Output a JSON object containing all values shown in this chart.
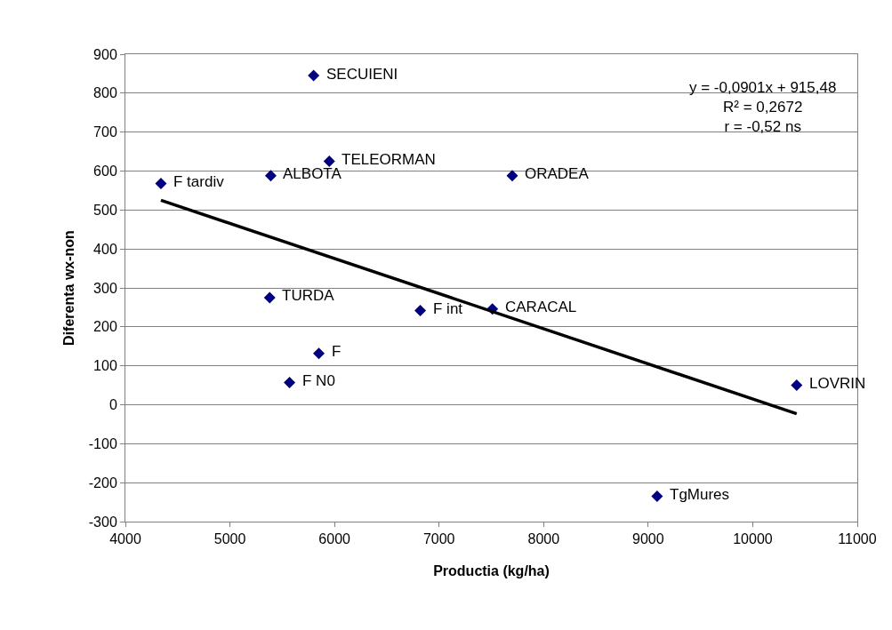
{
  "chart_data": {
    "type": "scatter",
    "xlabel": "Productia (kg/ha)",
    "ylabel": "Diferenta wx-non",
    "x": [
      5800,
      5950,
      5390,
      4340,
      7700,
      5380,
      6820,
      7510,
      5850,
      5570,
      10420,
      9085
    ],
    "series": [
      {
        "color": "#000080",
        "values": [
          845,
          625,
          588,
          568,
          588,
          275,
          242,
          246,
          132,
          57,
          50,
          -235
        ],
        "marker": "diamond"
      },
      {
        "type": "line",
        "color": "#000000",
        "x": [
          4340,
          10420
        ],
        "values": [
          525,
          -23
        ],
        "marker": "none"
      }
    ],
    "xlim": [
      4000,
      11000
    ],
    "xticks": [
      4000,
      5000,
      6000,
      7000,
      8000,
      9000,
      10000,
      11000
    ],
    "ylim": [
      -300,
      900
    ],
    "yticks": [
      -300,
      -200,
      -100,
      0,
      100,
      200,
      300,
      400,
      500,
      600,
      700,
      800,
      900
    ],
    "grid": "y",
    "annotations": [
      {
        "text": "SECUIENI",
        "x": 5800,
        "y": 845
      },
      {
        "text": "TELEORMAN",
        "x": 5950,
        "y": 625
      },
      {
        "text": "ALBOTA",
        "x": 5390,
        "y": 588
      },
      {
        "text": "F tardiv",
        "x": 4340,
        "y": 568
      },
      {
        "text": "ORADEA",
        "x": 7700,
        "y": 588
      },
      {
        "text": "TURDA",
        "x": 5380,
        "y": 275
      },
      {
        "text": "F int",
        "x": 6820,
        "y": 242
      },
      {
        "text": "CARACAL",
        "x": 7510,
        "y": 246
      },
      {
        "text": "F",
        "x": 5850,
        "y": 132
      },
      {
        "text": "F N0",
        "x": 5570,
        "y": 57
      },
      {
        "text": "LOVRIN",
        "x": 10420,
        "y": 50
      },
      {
        "text": "TgMures",
        "x": 9085,
        "y": -235
      },
      "y = -0,0901x + 915,48\nR² = 0,2672\nr = -0,52 ns"
    ]
  }
}
